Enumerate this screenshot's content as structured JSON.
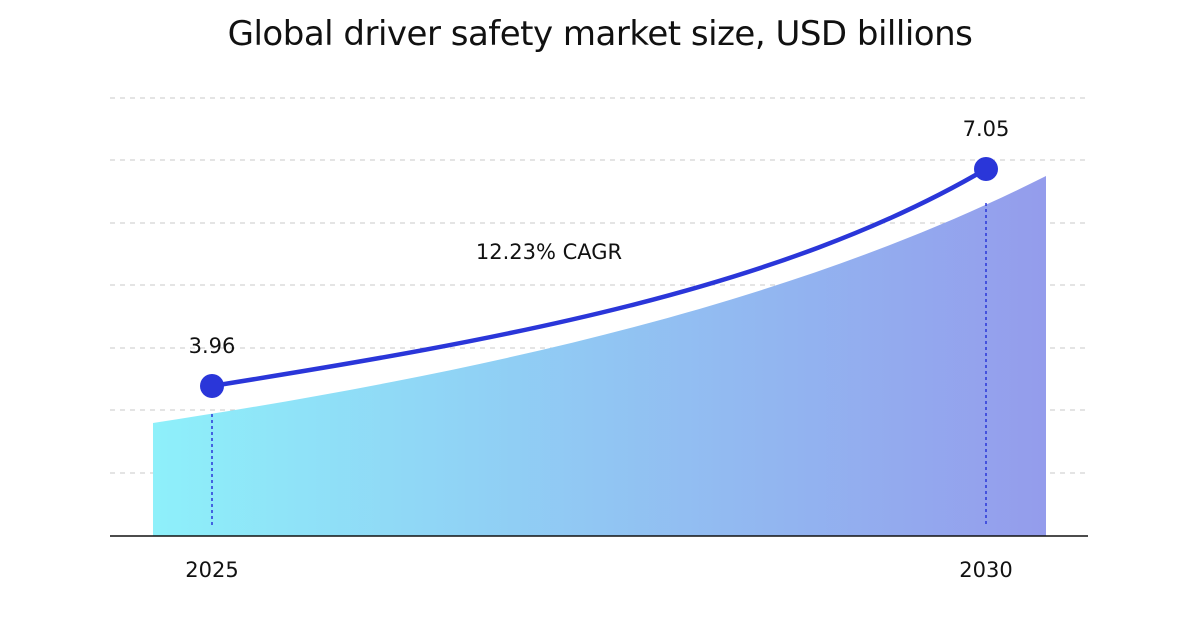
{
  "chart_data": {
    "type": "area",
    "title": "Global driver safety market size, USD billions",
    "x": [
      "2025",
      "2030"
    ],
    "values": [
      3.96,
      7.05
    ],
    "annotation": "12.23% CAGR",
    "xlabel": "",
    "ylabel": "",
    "grid": true,
    "colors": {
      "line": "#2a36d9",
      "area_start": "#8ef0fa",
      "area_end": "#949cec",
      "grid": "#c8c8c8",
      "axis": "#111111"
    }
  }
}
